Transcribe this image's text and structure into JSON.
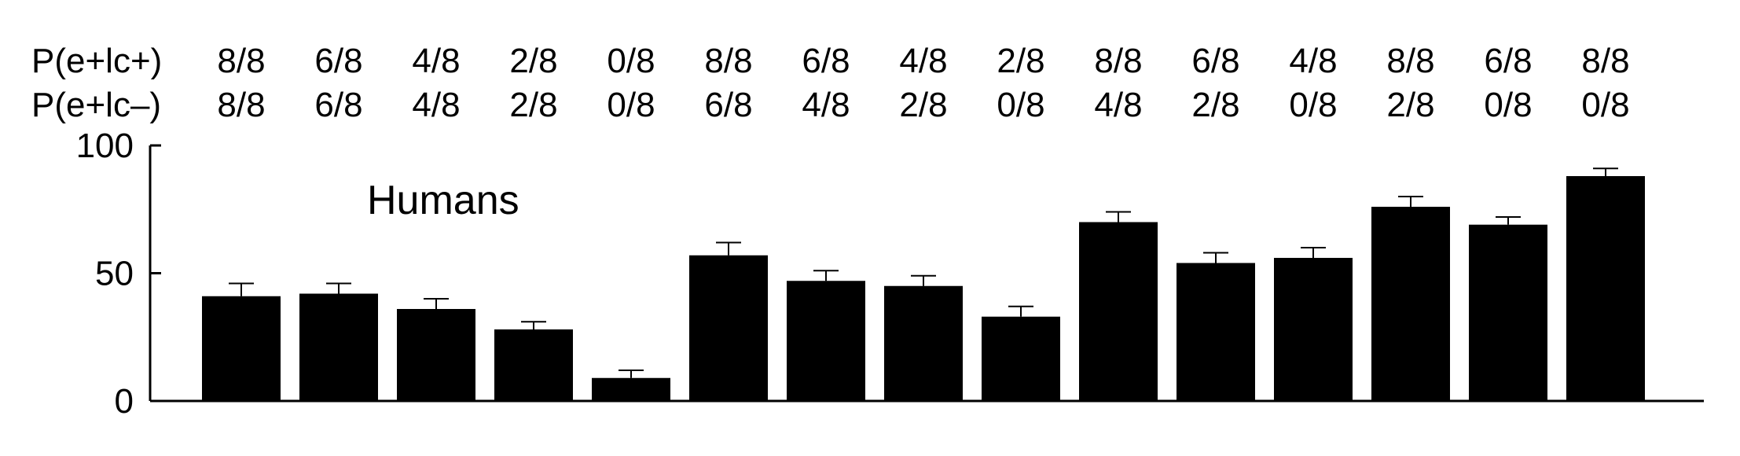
{
  "chart_data": {
    "type": "bar",
    "title": "",
    "annotation": "Humans",
    "xlabel": "",
    "ylabel": "",
    "ylim": [
      0,
      100
    ],
    "yticks": [
      0,
      50,
      100
    ],
    "grid": false,
    "color": "#000000",
    "condition_rows": [
      {
        "label": "P(e+lc+)",
        "values": [
          "8/8",
          "6/8",
          "4/8",
          "2/8",
          "0/8",
          "8/8",
          "6/8",
          "4/8",
          "2/8",
          "8/8",
          "6/8",
          "4/8",
          "8/8",
          "6/8",
          "8/8"
        ]
      },
      {
        "label": "P(e+lc–)",
        "values": [
          "8/8",
          "6/8",
          "4/8",
          "2/8",
          "0/8",
          "6/8",
          "4/8",
          "2/8",
          "0/8",
          "4/8",
          "2/8",
          "0/8",
          "2/8",
          "0/8",
          "0/8"
        ]
      }
    ],
    "values": [
      41,
      42,
      36,
      28,
      9,
      57,
      47,
      45,
      33,
      70,
      54,
      56,
      76,
      69,
      88
    ],
    "errors": [
      5,
      4,
      4,
      3,
      3,
      5,
      4,
      4,
      4,
      4,
      4,
      4,
      4,
      3,
      3
    ]
  }
}
